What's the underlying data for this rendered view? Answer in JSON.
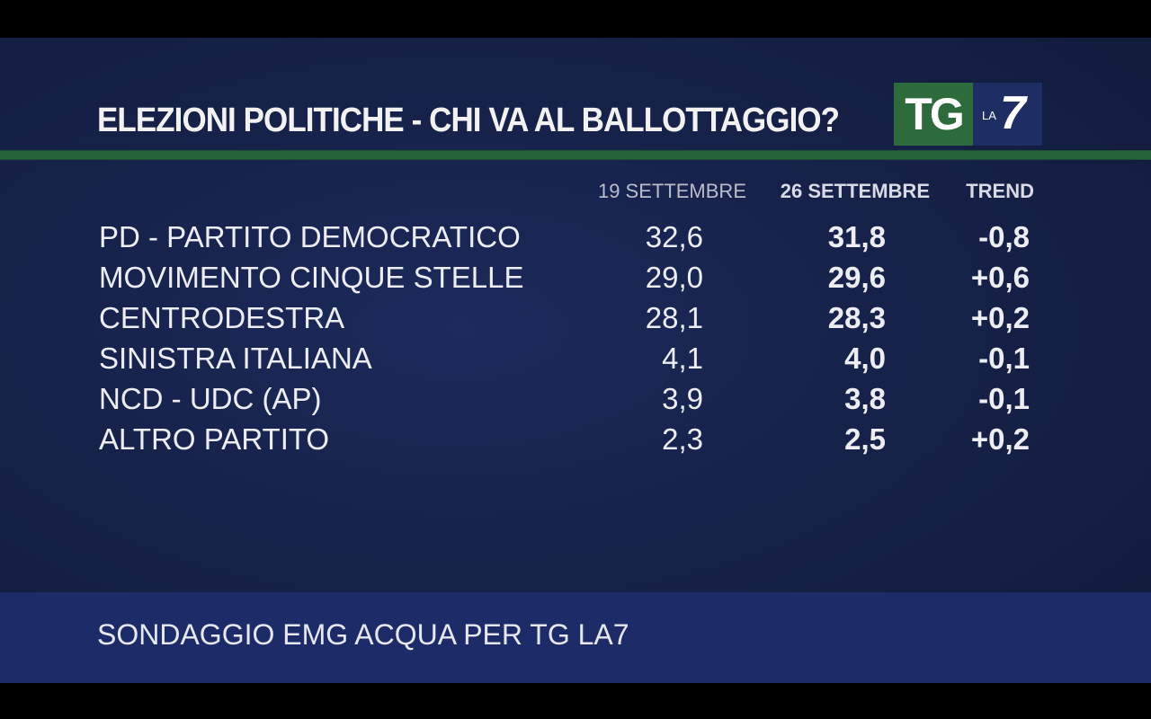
{
  "header": {
    "title": "ELEZIONI POLITICHE - CHI VA AL BALLOTTAGGIO?",
    "logo": {
      "tg": "TG",
      "la": "LA",
      "seven": "7"
    }
  },
  "columns": {
    "date1": "19 SETTEMBRE",
    "date2": "26 SETTEMBRE",
    "trend": "TREND"
  },
  "rows": [
    {
      "label": "PD - PARTITO DEMOCRATICO",
      "v1": "32,6",
      "v2": "31,8",
      "trend": "-0,8"
    },
    {
      "label": "MOVIMENTO CINQUE STELLE",
      "v1": "29,0",
      "v2": "29,6",
      "trend": "+0,6"
    },
    {
      "label": "CENTRODESTRA",
      "v1": "28,1",
      "v2": "28,3",
      "trend": "+0,2"
    },
    {
      "label": "SINISTRA ITALIANA",
      "v1": "4,1",
      "v2": "4,0",
      "trend": "-0,1"
    },
    {
      "label": "NCD - UDC (AP)",
      "v1": "3,9",
      "v2": "3,8",
      "trend": "-0,1"
    },
    {
      "label": "ALTRO PARTITO",
      "v1": "2,3",
      "v2": "2,5",
      "trend": "+0,2"
    }
  ],
  "footer": {
    "source": "SONDAGGIO EMG ACQUA PER TG LA7"
  },
  "colors": {
    "background": "#17224a",
    "accent_green": "#27633a",
    "footer_band": "#1d2b68",
    "logo_green": "#2e6b3c",
    "logo_blue": "#1e2e64"
  },
  "chart_data": {
    "type": "table",
    "title": "ELEZIONI POLITICHE - CHI VA AL BALLOTTAGGIO?",
    "columns": [
      "19 SETTEMBRE",
      "26 SETTEMBRE",
      "TREND"
    ],
    "categories": [
      "PD - PARTITO DEMOCRATICO",
      "MOVIMENTO CINQUE STELLE",
      "CENTRODESTRA",
      "SINISTRA ITALIANA",
      "NCD - UDC (AP)",
      "ALTRO PARTITO"
    ],
    "series": [
      {
        "name": "19 SETTEMBRE",
        "values": [
          32.6,
          29.0,
          28.1,
          4.1,
          3.9,
          2.3
        ]
      },
      {
        "name": "26 SETTEMBRE",
        "values": [
          31.8,
          29.6,
          28.3,
          4.0,
          3.8,
          2.5
        ]
      },
      {
        "name": "TREND",
        "values": [
          -0.8,
          0.6,
          0.2,
          -0.1,
          -0.1,
          0.2
        ]
      }
    ]
  }
}
